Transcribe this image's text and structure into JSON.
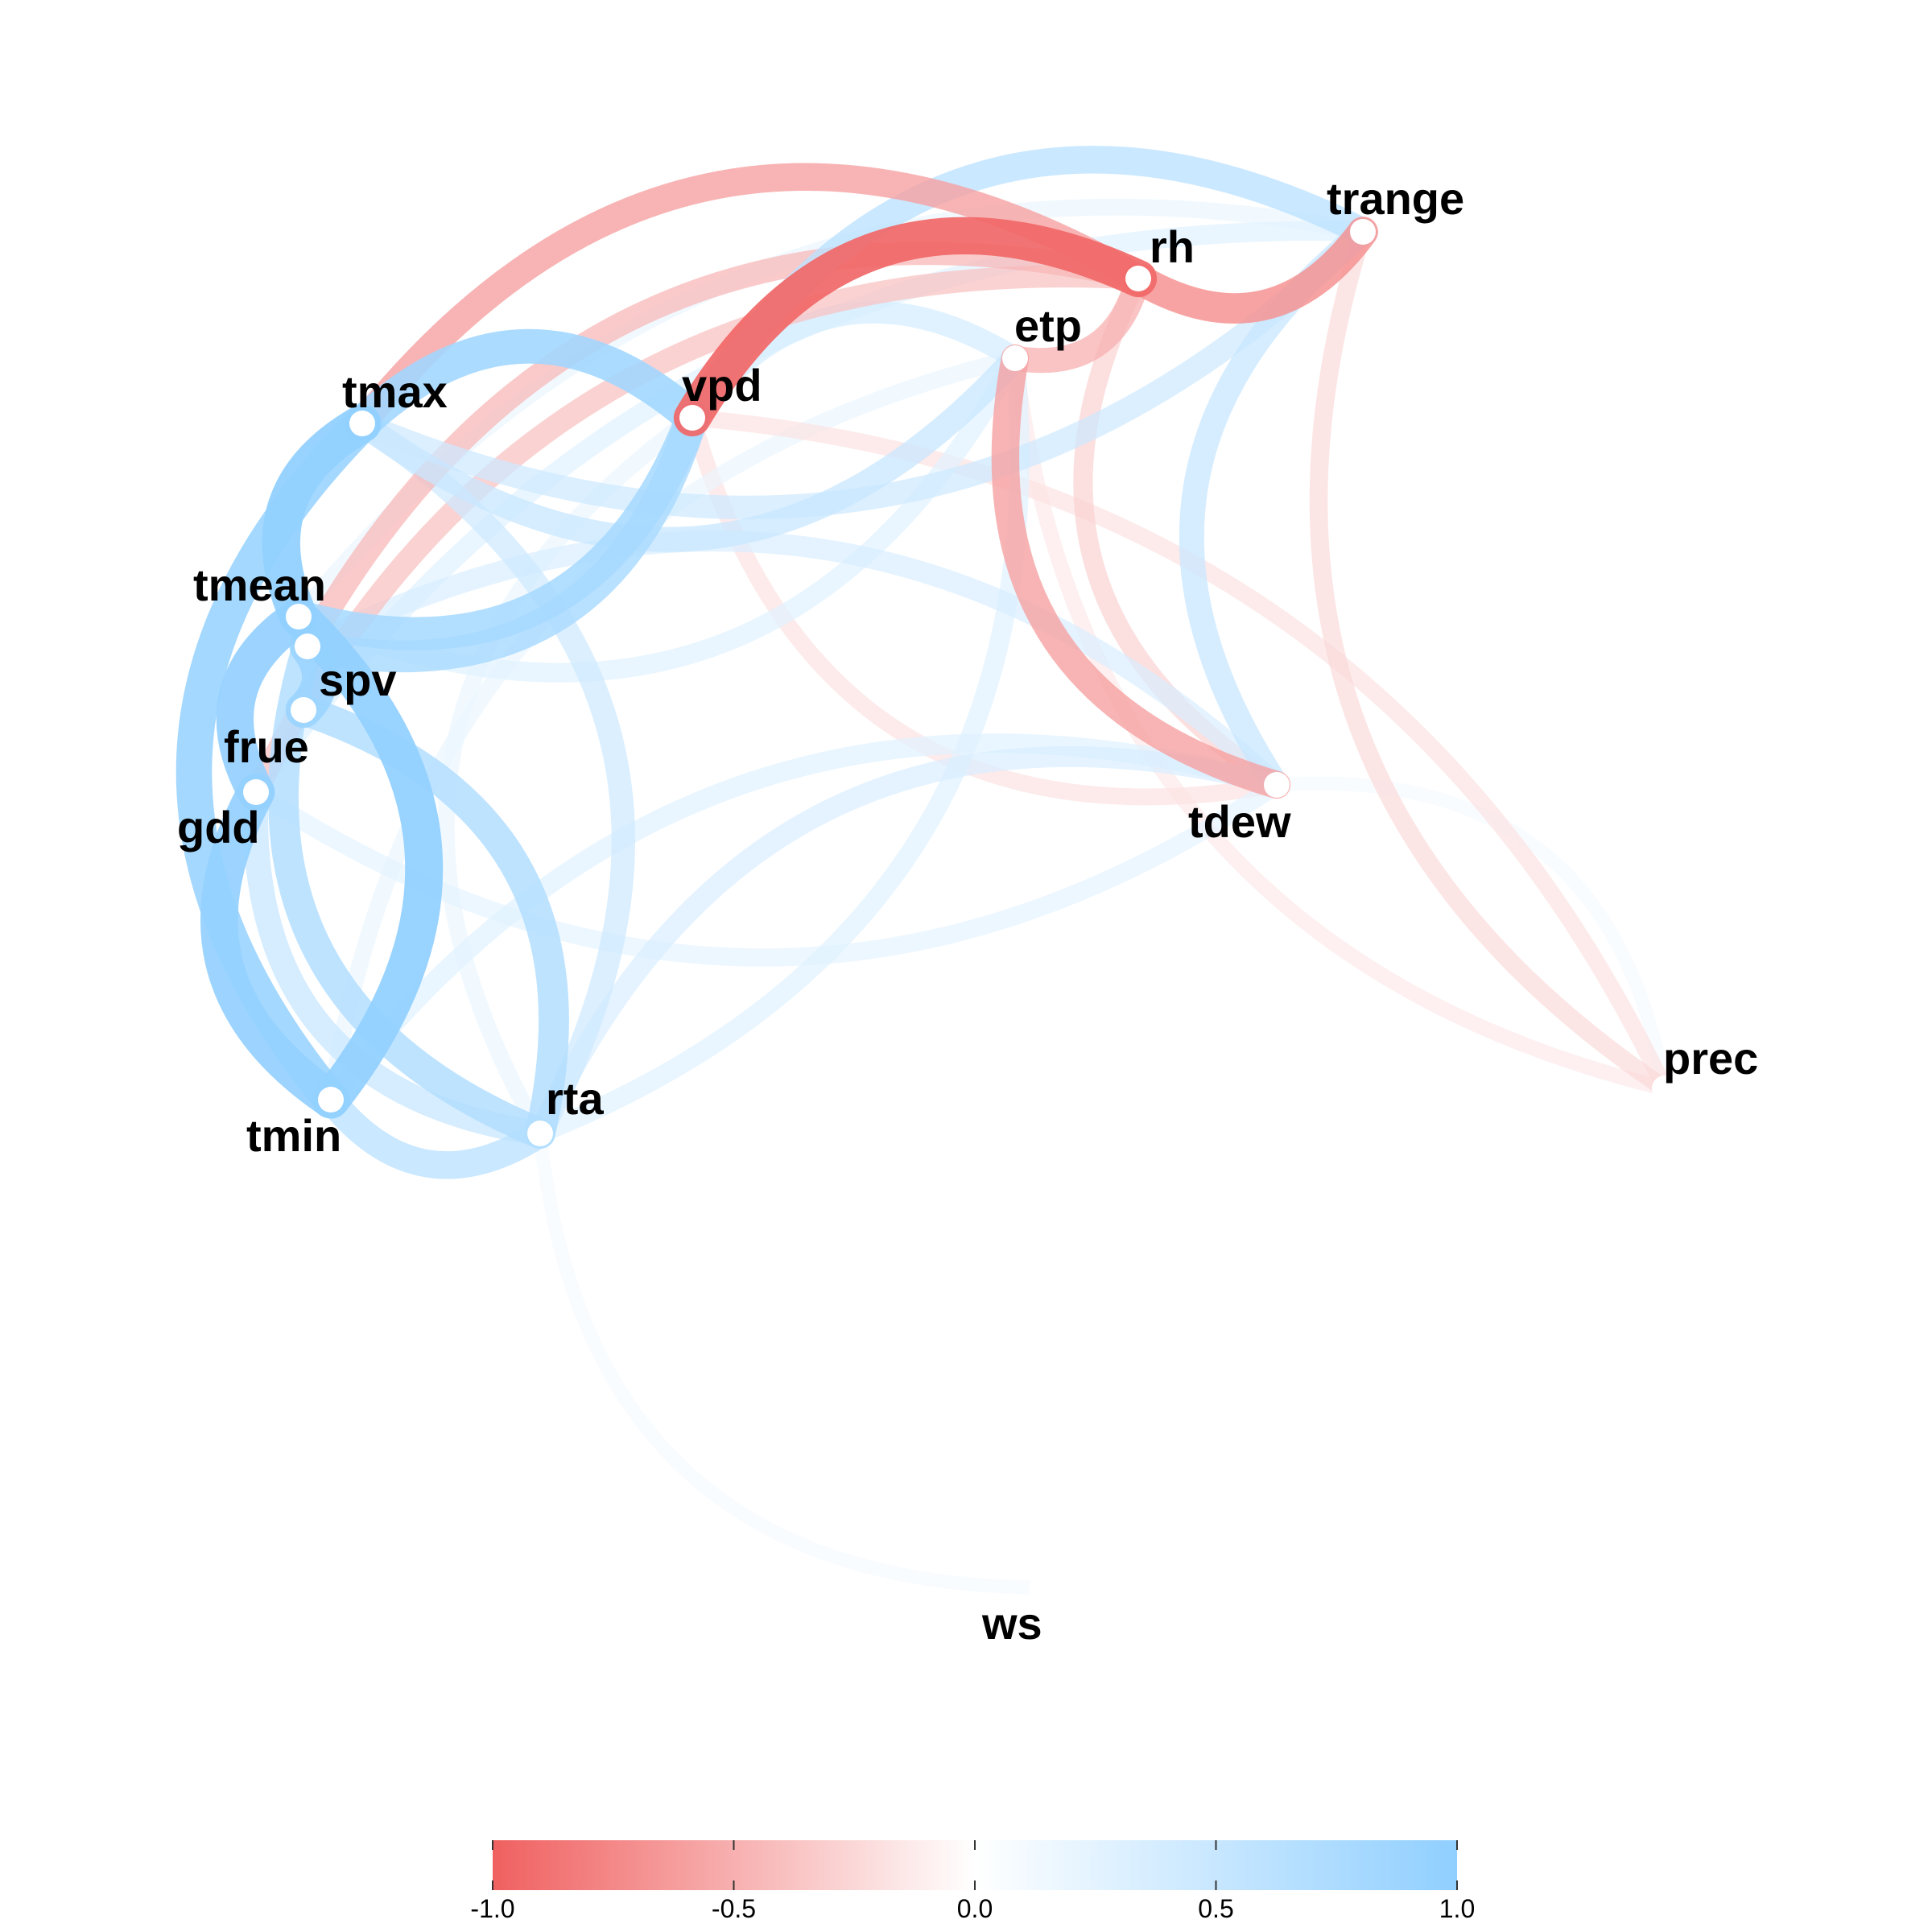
{
  "nodes": [
    {
      "id": "tmax",
      "label": "tmax"
    },
    {
      "id": "tmean",
      "label": "tmean"
    },
    {
      "id": "spv",
      "label": "spv"
    },
    {
      "id": "frue",
      "label": "frue"
    },
    {
      "id": "gdd",
      "label": "gdd"
    },
    {
      "id": "tmin",
      "label": "tmin"
    },
    {
      "id": "rta",
      "label": "rta"
    },
    {
      "id": "vpd",
      "label": "vpd"
    },
    {
      "id": "etp",
      "label": "etp"
    },
    {
      "id": "rh",
      "label": "rh"
    },
    {
      "id": "trange",
      "label": "trange"
    },
    {
      "id": "tdew",
      "label": "tdew"
    },
    {
      "id": "prec",
      "label": "prec"
    },
    {
      "id": "ws",
      "label": "ws"
    }
  ],
  "edges": [
    {
      "from": "tmax",
      "to": "tmean",
      "r": 0.98
    },
    {
      "from": "tmean",
      "to": "tmin",
      "r": 0.97
    },
    {
      "from": "tmax",
      "to": "tmin",
      "r": 0.9
    },
    {
      "from": "gdd",
      "to": "tmin",
      "r": 0.96
    },
    {
      "from": "tmean",
      "to": "gdd",
      "r": 0.95
    },
    {
      "from": "tmax",
      "to": "vpd",
      "r": 0.85
    },
    {
      "from": "vpd",
      "to": "spv",
      "r": 0.75
    },
    {
      "from": "tmean",
      "to": "vpd",
      "r": 0.8
    },
    {
      "from": "spv",
      "to": "frue",
      "r": 0.9
    },
    {
      "from": "spv",
      "to": "rta",
      "r": 0.7
    },
    {
      "from": "frue",
      "to": "rta",
      "r": 0.7
    },
    {
      "from": "tmin",
      "to": "rta",
      "r": 0.6
    },
    {
      "from": "tmax",
      "to": "rta",
      "r": 0.45
    },
    {
      "from": "gdd",
      "to": "rta",
      "r": 0.5
    },
    {
      "from": "rta",
      "to": "tdew",
      "r": 0.35
    },
    {
      "from": "rta",
      "to": "etp",
      "r": 0.3
    },
    {
      "from": "rta",
      "to": "ws",
      "r": 0.1
    },
    {
      "from": "rta",
      "to": "vpd",
      "r": 0.2
    },
    {
      "from": "vpd",
      "to": "rh",
      "r": -0.95
    },
    {
      "from": "vpd",
      "to": "trange",
      "r": 0.6
    },
    {
      "from": "vpd",
      "to": "etp",
      "r": 0.4
    },
    {
      "from": "rh",
      "to": "trange",
      "r": -0.7
    },
    {
      "from": "rh",
      "to": "etp",
      "r": -0.5
    },
    {
      "from": "rh",
      "to": "tmax",
      "r": -0.6
    },
    {
      "from": "rh",
      "to": "spv",
      "r": -0.45
    },
    {
      "from": "rh",
      "to": "gdd",
      "r": -0.4
    },
    {
      "from": "trange",
      "to": "tmax",
      "r": 0.45
    },
    {
      "from": "trange",
      "to": "tdew",
      "r": 0.5
    },
    {
      "from": "trange",
      "to": "tmean",
      "r": 0.2
    },
    {
      "from": "trange",
      "to": "prec",
      "r": -0.25
    },
    {
      "from": "tdew",
      "to": "rh",
      "r": -0.3
    },
    {
      "from": "tdew",
      "to": "tmin",
      "r": 0.3
    },
    {
      "from": "tdew",
      "to": "etp",
      "r": -0.6
    },
    {
      "from": "tdew",
      "to": "spv",
      "r": 0.35
    },
    {
      "from": "tdew",
      "to": "gdd",
      "r": 0.25
    },
    {
      "from": "tdew",
      "to": "vpd",
      "r": -0.2
    },
    {
      "from": "etp",
      "to": "tmax",
      "r": 0.5
    },
    {
      "from": "etp",
      "to": "tmean",
      "r": 0.3
    },
    {
      "from": "etp",
      "to": "prec",
      "r": -0.15
    },
    {
      "from": "etp",
      "to": "tmin",
      "r": 0.2
    },
    {
      "from": "vpd",
      "to": "prec",
      "r": -0.2
    },
    {
      "from": "tdew",
      "to": "prec",
      "r": 0.1
    },
    {
      "from": "trange",
      "to": "gdd",
      "r": 0.3
    }
  ],
  "legend": {
    "scale": "correlation",
    "colors": {
      "negative": "#f06060",
      "zero": "#ffffff",
      "positive": "#90cfff"
    },
    "ticks": [
      "-1.0",
      "-0.5",
      "0.0",
      "0.5",
      "1.0"
    ]
  }
}
